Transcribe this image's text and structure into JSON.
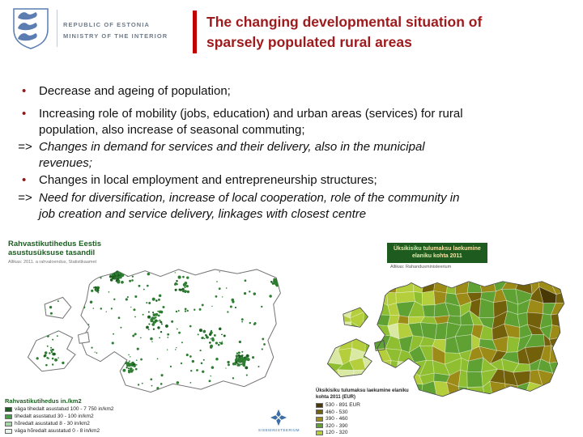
{
  "theme": {
    "accent_red": "#C00000",
    "title_color": "#9E1A1D",
    "bullet_color": "#8B1A1A"
  },
  "header": {
    "org_line1": "REPUBLIC OF ESTONIA",
    "org_line2": "MINISTRY OF THE INTERIOR",
    "title_line1": "The changing developmental situation of",
    "title_line2": "sparsely populated rural areas"
  },
  "body": {
    "bullets": [
      {
        "marker": "•",
        "style": "normal",
        "text": "Decrease and ageing of population;"
      },
      {
        "marker": "•",
        "style": "normal",
        "text": "Increasing role of mobility (jobs, education) and urban areas (services) for rural\npopulation, also increase of seasonal commuting;"
      },
      {
        "marker": "=>",
        "style": "italic",
        "text": "Changes in demand for services and their delivery, also in the municipal\nrevenues;"
      },
      {
        "marker": "•",
        "style": "normal",
        "text": "Changes in local employment and entrepreneurship structures;"
      },
      {
        "marker": "=>",
        "style": "italic",
        "text": "Need for diversification, increase of local cooperation, role of the community in\njob creation and service delivery, linkages with closest centre"
      }
    ]
  },
  "maps": {
    "left": {
      "title_line1": "Rahvastikutihedus Eestis",
      "title_line2": "asustusüksuse tasandil",
      "source": "Allikas: 2011. a rahvaloendus, Statistikaamet",
      "legend_title": "Rahvastikutihedus in./km2",
      "legend": [
        {
          "color": "#1B5E20",
          "label": "väga tihedalt asustatud 100 - 7 750 in/km2"
        },
        {
          "color": "#43A047",
          "label": "tihedalt asustatud 30 - 100 in/km2"
        },
        {
          "color": "#A5D6A7",
          "label": "hõredalt asustatud 8 - 30 in/km2"
        },
        {
          "color": "#E8F5E9",
          "label": "väga hõredalt asustatud 0 - 8 in/km2"
        }
      ],
      "dot_color": "#2E7D32",
      "dot_color_dark": "#1B5E20",
      "footer_text": "SISEMINISTEERIUM"
    },
    "right": {
      "header_line1": "Üksikisiku tulumaksu laekumine",
      "header_line2": "elaniku kohta 2011",
      "source": "Allikas: Rahandusministeerium",
      "legend_title": "Üksikisiku tulumaksu laekumine elaniku kohta 2011 (EUR)",
      "legend": [
        {
          "color": "#473805",
          "label": "530 - 891 EUR"
        },
        {
          "color": "#72600A",
          "label": "460 - 530"
        },
        {
          "color": "#9C8B16",
          "label": "390 - 460"
        },
        {
          "color": "#5FA233",
          "label": "320 - 390"
        },
        {
          "color": "#B5CE3B",
          "label": "120 - 320"
        }
      ],
      "palette": [
        "#D9E8A3",
        "#B5CE3B",
        "#8FBE30",
        "#5FA233",
        "#9C8B16",
        "#72600A",
        "#473805"
      ]
    }
  }
}
